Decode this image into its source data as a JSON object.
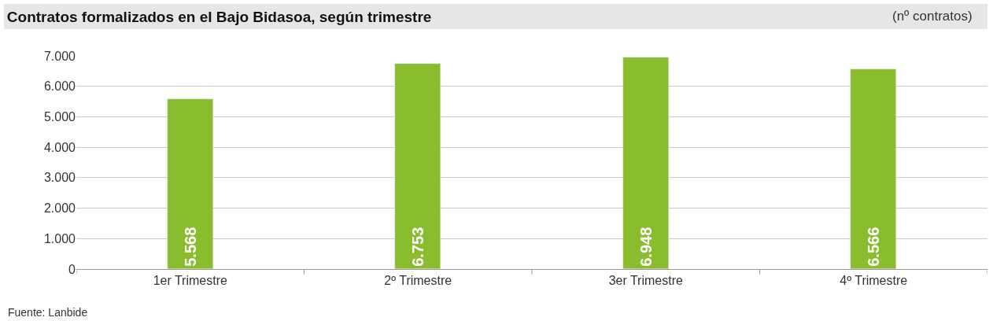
{
  "chart_data": {
    "type": "bar",
    "title": "Contratos formalizados en el Bajo Bidasoa, según trimestre",
    "categories": [
      "1er Trimestre",
      "2º Trimestre",
      "3er Trimestre",
      "4º Trimestre"
    ],
    "values": [
      5568,
      6753,
      6948,
      6566
    ],
    "value_labels": [
      "5.568",
      "6.753",
      "6.948",
      "6.566"
    ],
    "color": "#8abd2e",
    "ylim": [
      0,
      7000
    ],
    "yticks": [
      {
        "value": 0,
        "label": "0"
      },
      {
        "value": 1000,
        "label": "1.000"
      },
      {
        "value": 2000,
        "label": "2.000"
      },
      {
        "value": 3000,
        "label": "3.000"
      },
      {
        "value": 4000,
        "label": "4.000"
      },
      {
        "value": 5000,
        "label": "5.000"
      },
      {
        "value": 6000,
        "label": "6.000"
      },
      {
        "value": 7000,
        "label": "7.000"
      }
    ],
    "grid": "y",
    "annotations": [
      "(nº contratos)",
      "Fuente: Lanbide"
    ]
  }
}
